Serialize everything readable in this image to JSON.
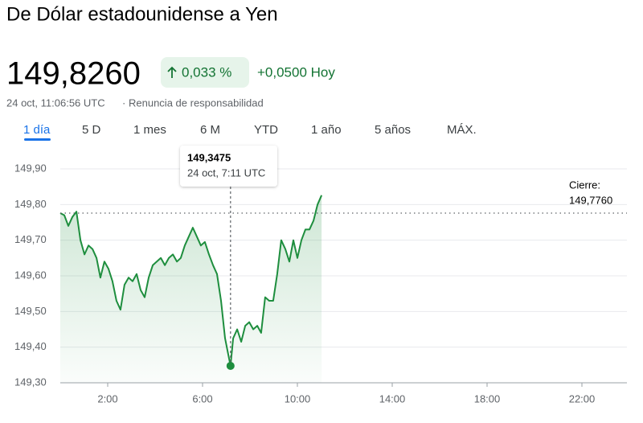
{
  "header": {
    "title": "De Dólar estadounidense a Yen",
    "price": "149,8260",
    "change_pct": "0,033 %",
    "change_abs": "+0,0500 Hoy",
    "timestamp": "24 oct, 11:06:56 UTC",
    "disclaimer": "Renuncia de responsabilidad"
  },
  "tabs": [
    "1 día",
    "5 D",
    "1 mes",
    "6 M",
    "YTD",
    "1 año",
    "5 años",
    "MÁX."
  ],
  "chart_data": {
    "type": "line",
    "series": [
      {
        "color": "#1e8e3e",
        "x": [
          0,
          0.17,
          0.34,
          0.51,
          0.68,
          0.85,
          1.02,
          1.19,
          1.36,
          1.53,
          1.69,
          1.86,
          2.03,
          2.2,
          2.37,
          2.54,
          2.71,
          2.88,
          3.05,
          3.22,
          3.39,
          3.56,
          3.73,
          3.9,
          4.07,
          4.24,
          4.41,
          4.58,
          4.75,
          4.92,
          5.08,
          5.25,
          5.42,
          5.59,
          5.76,
          5.93,
          6.1,
          6.27,
          6.44,
          6.61,
          6.78,
          6.95,
          7.18,
          7.29,
          7.46,
          7.63,
          7.8,
          7.97,
          8.14,
          8.31,
          8.47,
          8.64,
          8.81,
          8.98,
          9.15,
          9.32,
          9.49,
          9.66,
          9.83,
          10,
          10.17,
          10.34,
          10.51,
          10.68,
          10.85,
          11.02
        ],
        "values": [
          149.776,
          149.77,
          149.74,
          149.765,
          149.78,
          149.7,
          149.66,
          149.685,
          149.675,
          149.65,
          149.595,
          149.64,
          149.62,
          149.585,
          149.53,
          149.505,
          149.575,
          149.595,
          149.585,
          149.605,
          149.56,
          149.54,
          149.595,
          149.63,
          149.64,
          149.65,
          149.63,
          149.65,
          149.66,
          149.64,
          149.65,
          149.685,
          149.71,
          149.735,
          149.71,
          149.685,
          149.695,
          149.66,
          149.63,
          149.605,
          149.53,
          149.425,
          149.3475,
          149.425,
          149.45,
          149.415,
          149.46,
          149.47,
          149.45,
          149.46,
          149.44,
          149.54,
          149.53,
          149.53,
          149.605,
          149.7,
          149.675,
          149.64,
          149.7,
          149.65,
          149.7,
          149.73,
          149.73,
          149.755,
          149.8,
          149.826
        ]
      }
    ],
    "xlim": [
      0,
      24
    ],
    "xticks": [
      {
        "value": 2,
        "label": "2:00"
      },
      {
        "value": 6,
        "label": "6:00"
      },
      {
        "value": 10,
        "label": "10:00"
      },
      {
        "value": 14,
        "label": "14:00"
      },
      {
        "value": 18,
        "label": "18:00"
      },
      {
        "value": 22,
        "label": "22:00"
      }
    ],
    "ylim": [
      149.3,
      149.9
    ],
    "yticks": [
      {
        "value": 149.3,
        "label": "149,30"
      },
      {
        "value": 149.4,
        "label": "149,40"
      },
      {
        "value": 149.5,
        "label": "149,50"
      },
      {
        "value": 149.6,
        "label": "149,60"
      },
      {
        "value": 149.7,
        "label": "149,70"
      },
      {
        "value": 149.8,
        "label": "149,80"
      },
      {
        "value": 149.9,
        "label": "149,90"
      }
    ],
    "grid": true,
    "close": {
      "title": "Cierre:",
      "value": 149.776,
      "label": "149,7760"
    },
    "tooltip": {
      "x": 7.18,
      "value": 149.3475,
      "value_label": "149,3475",
      "time": "24 oct, 7:11 UTC"
    }
  }
}
